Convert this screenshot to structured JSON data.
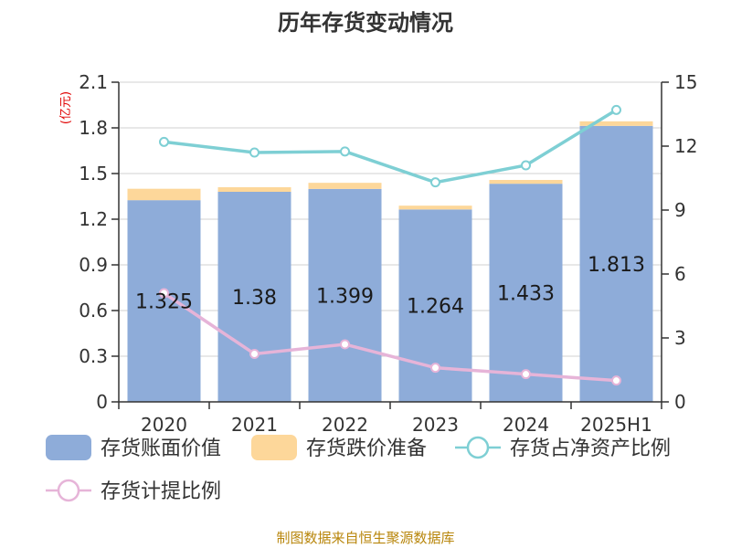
{
  "chart_data": {
    "type": "bar",
    "title": "历年存货变动情况",
    "left_axis_unit": "(亿元)",
    "categories": [
      "2020",
      "2021",
      "2022",
      "2023",
      "2024",
      "2025H1"
    ],
    "series": [
      {
        "name": "存货账面价值",
        "kind": "bar",
        "stack": "s",
        "axis": "left",
        "color": "#8eacd9",
        "values": [
          1.325,
          1.38,
          1.399,
          1.264,
          1.433,
          1.813
        ]
      },
      {
        "name": "存货跌价准备",
        "kind": "bar",
        "stack": "s",
        "axis": "left",
        "color": "#fdd79a",
        "values": [
          0.075,
          0.03,
          0.04,
          0.025,
          0.025,
          0.03
        ]
      },
      {
        "name": "存货占净资产比例",
        "kind": "line",
        "axis": "right",
        "color": "#7ecfd4",
        "values": [
          12.2,
          11.7,
          11.75,
          10.3,
          11.1,
          13.7
        ]
      },
      {
        "name": "存货计提比例",
        "kind": "line",
        "axis": "right",
        "color": "#e6b4d8",
        "values": [
          5.1,
          2.25,
          2.7,
          1.6,
          1.3,
          1.0
        ]
      }
    ],
    "data_labels": [
      "1.325",
      "1.38",
      "1.399",
      "1.264",
      "1.433",
      "1.813"
    ],
    "left_axis": {
      "ylim": [
        0,
        2.1
      ],
      "ticks": [
        "0",
        "0.3",
        "0.6",
        "0.9",
        "1.2",
        "1.5",
        "1.8",
        "2.1"
      ]
    },
    "right_axis": {
      "ylim": [
        0,
        15
      ],
      "ticks": [
        "0",
        "3",
        "6",
        "9",
        "12",
        "15"
      ]
    },
    "grid": true,
    "legend_position": "bottom"
  },
  "source": "制图数据来自恒生聚源数据库"
}
